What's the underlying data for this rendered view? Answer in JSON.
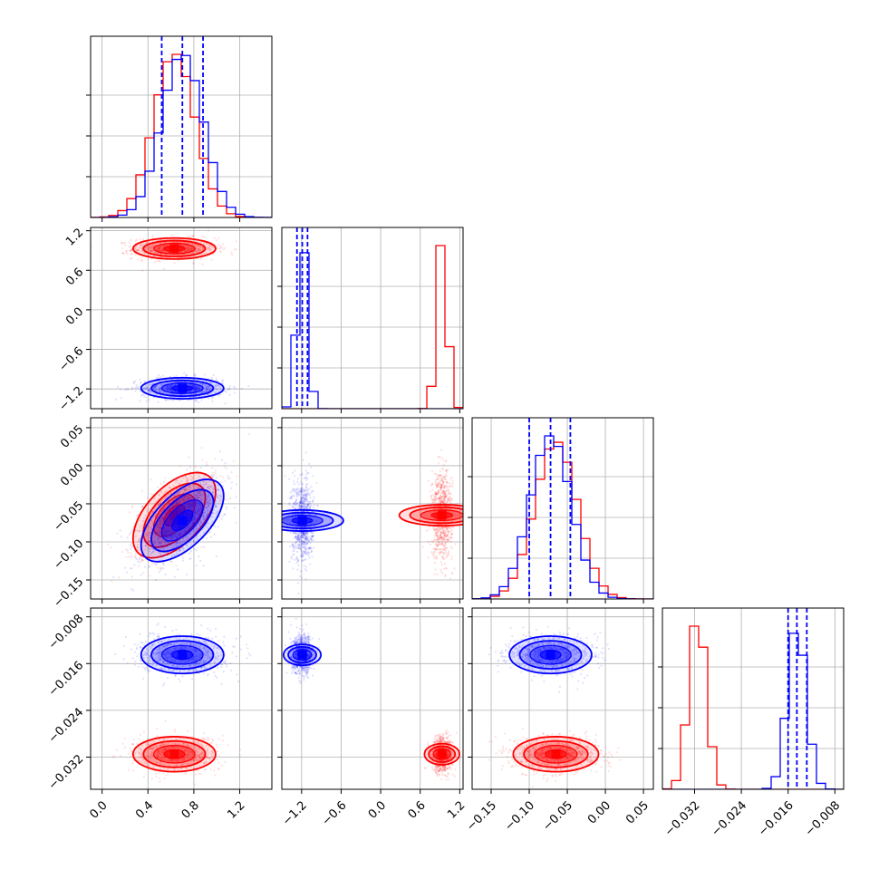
{
  "chart_data": {
    "type": "corner",
    "grid": true,
    "colors": {
      "a": "#ff0000",
      "b": "#0000ff"
    },
    "series": [
      {
        "color": "#ff0000",
        "params": [
          {
            "mean": 0.63,
            "std": 0.18
          },
          {
            "mean": 0.93,
            "std": 0.08
          },
          {
            "mean": -0.065,
            "std": 0.028
          },
          {
            "mean": -0.0315,
            "std": 0.0015
          }
        ]
      },
      {
        "color": "#0000ff",
        "params": [
          {
            "mean": 0.7,
            "std": 0.18
          },
          {
            "mean": -1.19,
            "std": 0.08
          },
          {
            "mean": -0.072,
            "std": 0.027
          },
          {
            "mean": -0.0145,
            "std": 0.0016
          }
        ]
      }
    ],
    "correlations": [
      {
        "i": 2,
        "j": 0,
        "series": 0,
        "rho": 0.55
      },
      {
        "i": 2,
        "j": 0,
        "series": 1,
        "rho": 0.6
      }
    ],
    "quantile_lines": {
      "color": "#0000ff",
      "values": [
        [
          0.52,
          0.7,
          0.88
        ],
        [
          -1.27,
          -1.19,
          -1.11
        ],
        [
          -0.1,
          -0.072,
          -0.046
        ],
        [
          -0.016,
          -0.0145,
          -0.0128
        ]
      ]
    },
    "axes": [
      {
        "range": [
          -0.1,
          1.48
        ],
        "ticks": [
          0.0,
          0.4,
          0.8,
          1.2
        ],
        "tick_labels": [
          "0.0",
          "0.4",
          "0.8",
          "1.2"
        ]
      },
      {
        "range": [
          -1.5,
          1.25
        ],
        "ticks": [
          -1.2,
          -0.6,
          0.0,
          0.6,
          1.2
        ],
        "tick_labels": [
          "−1.2",
          "−0.6",
          "0.0",
          "0.6",
          "1.2"
        ]
      },
      {
        "range": [
          -0.175,
          0.063
        ],
        "ticks": [
          -0.15,
          -0.1,
          -0.05,
          0.0,
          0.05
        ],
        "tick_labels": [
          "−0.15",
          "−0.10",
          "−0.05",
          "0.00",
          "0.05"
        ]
      },
      {
        "range": [
          -0.0375,
          -0.0065
        ],
        "ticks": [
          -0.032,
          -0.024,
          -0.016,
          -0.008
        ],
        "tick_labels": [
          "−0.032",
          "−0.024",
          "−0.016",
          "−0.008"
        ]
      }
    ],
    "xlabel": "",
    "ylabel": "",
    "title": ""
  }
}
